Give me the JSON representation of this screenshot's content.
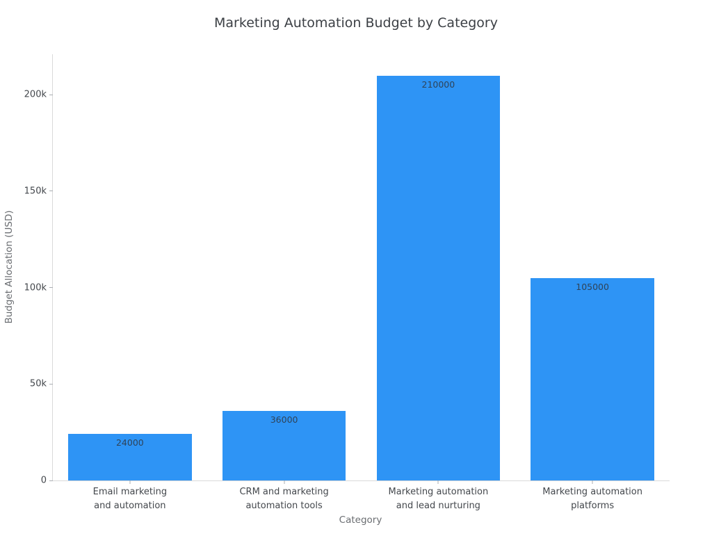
{
  "title": "Marketing Automation Budget by Category",
  "colors": {
    "bar": "#2e94f5",
    "axis_line": "#d9d9d9",
    "tick_mark": "#a9adb2",
    "tick_text": "#43474c",
    "axis_title_text": "#6a6d71",
    "title_text": "#3b3f44",
    "value_label_text": "#2f4358",
    "background": "#ffffff"
  },
  "chart_data": {
    "type": "bar",
    "title": "Marketing Automation Budget by Category",
    "xlabel": "Category",
    "ylabel": "Budget Allocation (USD)",
    "categories": [
      "Email marketing and automation",
      "CRM and marketing automation tools",
      "Marketing automation and lead nurturing",
      "Marketing automation platforms"
    ],
    "category_tick_lines": [
      [
        "Email marketing",
        "and automation"
      ],
      [
        "CRM and marketing",
        "automation tools"
      ],
      [
        "Marketing automation",
        "and lead nurturing"
      ],
      [
        "Marketing automation",
        "platforms"
      ]
    ],
    "values": [
      24000,
      36000,
      210000,
      105000
    ],
    "value_labels": [
      "24000",
      "36000",
      "210000",
      "105000"
    ],
    "value_label_position": "inside-top",
    "yticks": {
      "values": [
        0,
        50000,
        100000,
        150000,
        200000
      ],
      "labels": [
        "0",
        "50k",
        "100k",
        "150k",
        "200k"
      ]
    },
    "ylim": [
      0,
      221000
    ],
    "bar_width_fraction": 0.8,
    "bar_color": "#2e94f5",
    "grid": false,
    "legend": false
  }
}
